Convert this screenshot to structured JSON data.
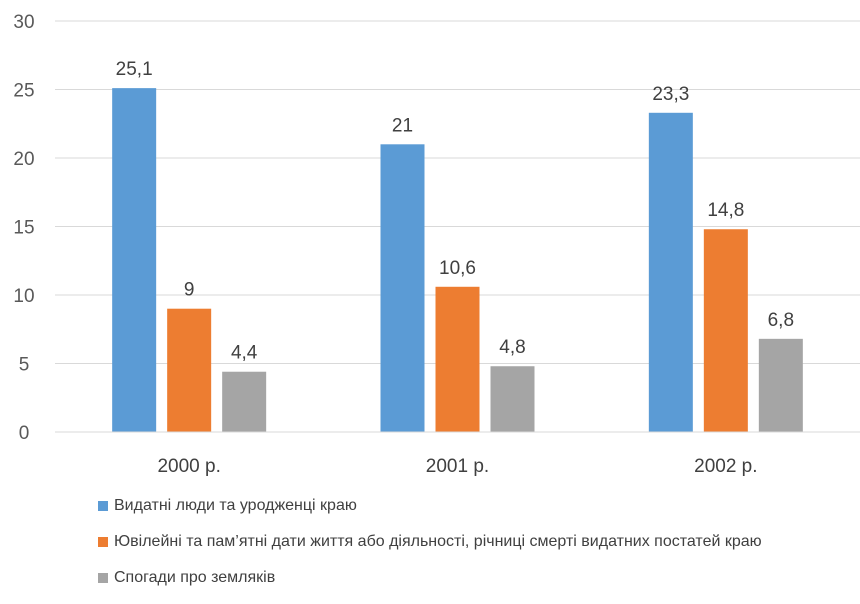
{
  "chart_data": {
    "type": "bar",
    "categories": [
      "2000 р.",
      "2001 р.",
      "2002 р."
    ],
    "series": [
      {
        "name": "Видатні люди та уродженці краю",
        "color": "#5B9BD5",
        "values": [
          25.1,
          21,
          23.3
        ],
        "labels": [
          "25,1",
          "21",
          "23,3"
        ]
      },
      {
        "name": "Ювілейні та пам’ятні дати життя або діяльності, річниці смерті видатних постатей краю",
        "color": "#ED7D31",
        "values": [
          9,
          10.6,
          14.8
        ],
        "labels": [
          "9",
          "10,6",
          "14,8"
        ]
      },
      {
        "name": "Спогади про земляків",
        "color": "#A5A5A5",
        "values": [
          4.4,
          4.8,
          6.8
        ],
        "labels": [
          "4,4",
          "4,8",
          "6,8"
        ]
      }
    ],
    "ylim": [
      0,
      30
    ],
    "yticks": [
      0,
      5,
      10,
      15,
      20,
      25,
      30
    ],
    "grid": true,
    "legend_position": "bottom-left"
  }
}
